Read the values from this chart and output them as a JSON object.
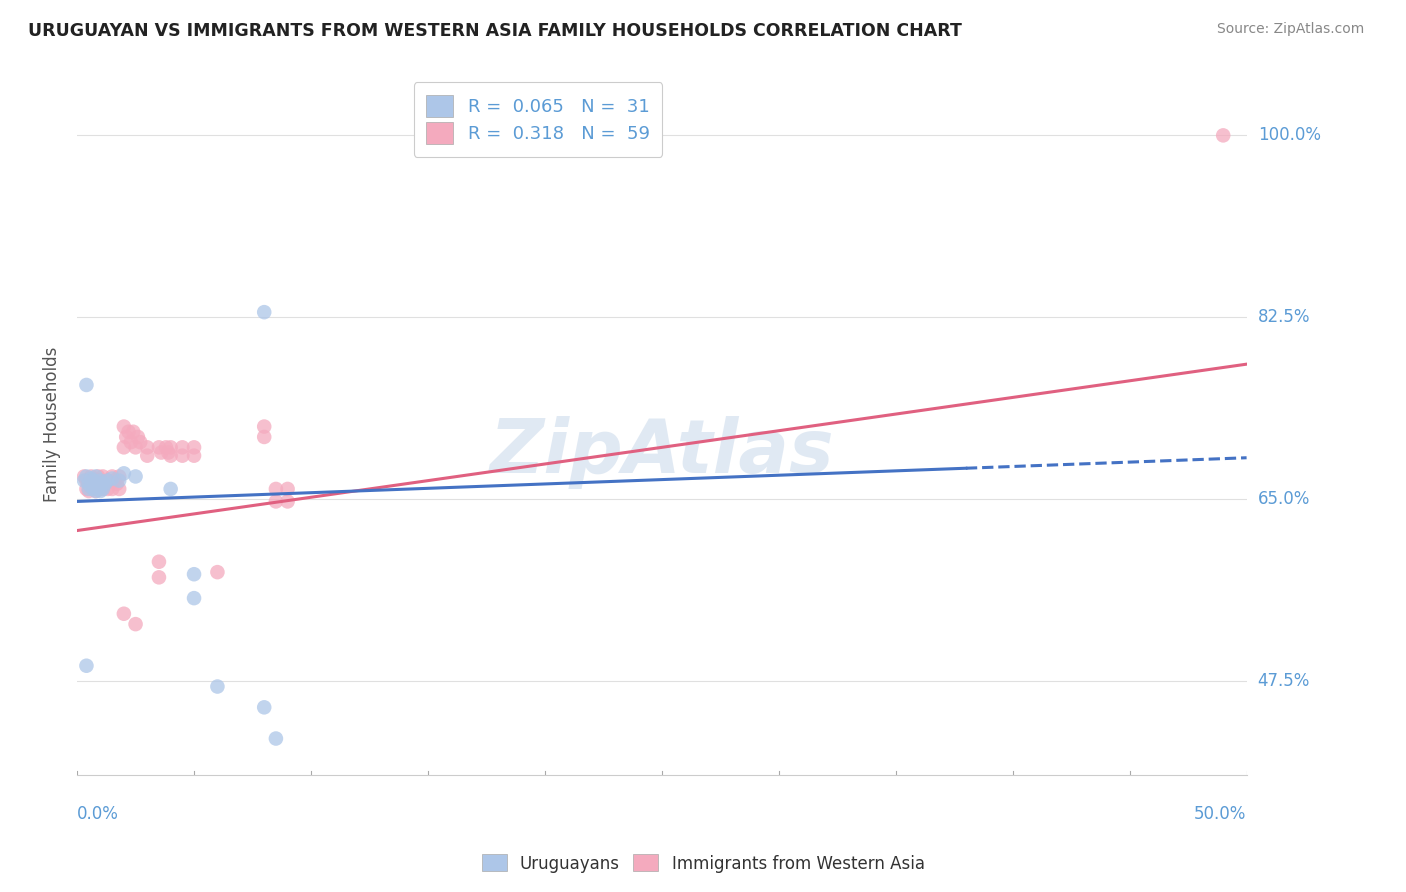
{
  "title": "URUGUAYAN VS IMMIGRANTS FROM WESTERN ASIA FAMILY HOUSEHOLDS CORRELATION CHART",
  "source": "Source: ZipAtlas.com",
  "ylabel": "Family Households",
  "ytick_labels": [
    "47.5%",
    "65.0%",
    "82.5%",
    "100.0%"
  ],
  "ytick_values": [
    0.475,
    0.65,
    0.825,
    1.0
  ],
  "xlim": [
    0.0,
    0.5
  ],
  "ylim": [
    0.385,
    1.06
  ],
  "watermark": "ZipAtlas",
  "uruguayan_color": "#adc6e8",
  "western_asia_color": "#f4aabe",
  "uruguayan_line_color": "#4472c4",
  "western_asia_line_color": "#e06080",
  "uruguayan_R": 0.065,
  "uruguayan_N": 31,
  "western_asia_R": 0.318,
  "western_asia_N": 59,
  "grid_color": "#e0e0e0",
  "background_color": "#ffffff",
  "tick_label_color": "#5b9bd5",
  "uruguayan_scatter": [
    [
      0.003,
      0.668
    ],
    [
      0.004,
      0.672
    ],
    [
      0.005,
      0.665
    ],
    [
      0.005,
      0.66
    ],
    [
      0.006,
      0.67
    ],
    [
      0.006,
      0.662
    ],
    [
      0.007,
      0.668
    ],
    [
      0.007,
      0.66
    ],
    [
      0.008,
      0.672
    ],
    [
      0.008,
      0.658
    ],
    [
      0.009,
      0.665
    ],
    [
      0.009,
      0.66
    ],
    [
      0.01,
      0.668
    ],
    [
      0.01,
      0.658
    ],
    [
      0.011,
      0.665
    ],
    [
      0.011,
      0.66
    ],
    [
      0.012,
      0.665
    ],
    [
      0.013,
      0.668
    ],
    [
      0.015,
      0.67
    ],
    [
      0.018,
      0.668
    ],
    [
      0.02,
      0.675
    ],
    [
      0.025,
      0.672
    ],
    [
      0.04,
      0.66
    ],
    [
      0.05,
      0.578
    ],
    [
      0.05,
      0.555
    ],
    [
      0.08,
      0.83
    ],
    [
      0.004,
      0.76
    ],
    [
      0.004,
      0.49
    ],
    [
      0.06,
      0.47
    ],
    [
      0.08,
      0.45
    ],
    [
      0.085,
      0.42
    ]
  ],
  "western_asia_scatter": [
    [
      0.003,
      0.672
    ],
    [
      0.004,
      0.668
    ],
    [
      0.004,
      0.66
    ],
    [
      0.005,
      0.665
    ],
    [
      0.005,
      0.658
    ],
    [
      0.006,
      0.672
    ],
    [
      0.006,
      0.662
    ],
    [
      0.007,
      0.668
    ],
    [
      0.007,
      0.66
    ],
    [
      0.008,
      0.665
    ],
    [
      0.008,
      0.658
    ],
    [
      0.009,
      0.672
    ],
    [
      0.009,
      0.66
    ],
    [
      0.01,
      0.668
    ],
    [
      0.01,
      0.66
    ],
    [
      0.011,
      0.672
    ],
    [
      0.011,
      0.66
    ],
    [
      0.012,
      0.665
    ],
    [
      0.013,
      0.668
    ],
    [
      0.013,
      0.66
    ],
    [
      0.015,
      0.672
    ],
    [
      0.015,
      0.66
    ],
    [
      0.016,
      0.668
    ],
    [
      0.017,
      0.665
    ],
    [
      0.018,
      0.672
    ],
    [
      0.018,
      0.66
    ],
    [
      0.02,
      0.72
    ],
    [
      0.02,
      0.7
    ],
    [
      0.021,
      0.71
    ],
    [
      0.022,
      0.715
    ],
    [
      0.023,
      0.705
    ],
    [
      0.024,
      0.715
    ],
    [
      0.025,
      0.7
    ],
    [
      0.026,
      0.71
    ],
    [
      0.027,
      0.705
    ],
    [
      0.03,
      0.7
    ],
    [
      0.03,
      0.692
    ],
    [
      0.035,
      0.7
    ],
    [
      0.036,
      0.695
    ],
    [
      0.038,
      0.7
    ],
    [
      0.039,
      0.695
    ],
    [
      0.04,
      0.7
    ],
    [
      0.04,
      0.692
    ],
    [
      0.045,
      0.7
    ],
    [
      0.045,
      0.692
    ],
    [
      0.05,
      0.7
    ],
    [
      0.05,
      0.692
    ],
    [
      0.08,
      0.72
    ],
    [
      0.08,
      0.71
    ],
    [
      0.085,
      0.66
    ],
    [
      0.085,
      0.648
    ],
    [
      0.09,
      0.66
    ],
    [
      0.09,
      0.648
    ],
    [
      0.02,
      0.54
    ],
    [
      0.025,
      0.53
    ],
    [
      0.035,
      0.59
    ],
    [
      0.035,
      0.575
    ],
    [
      0.06,
      0.58
    ],
    [
      0.49,
      1.0
    ]
  ]
}
